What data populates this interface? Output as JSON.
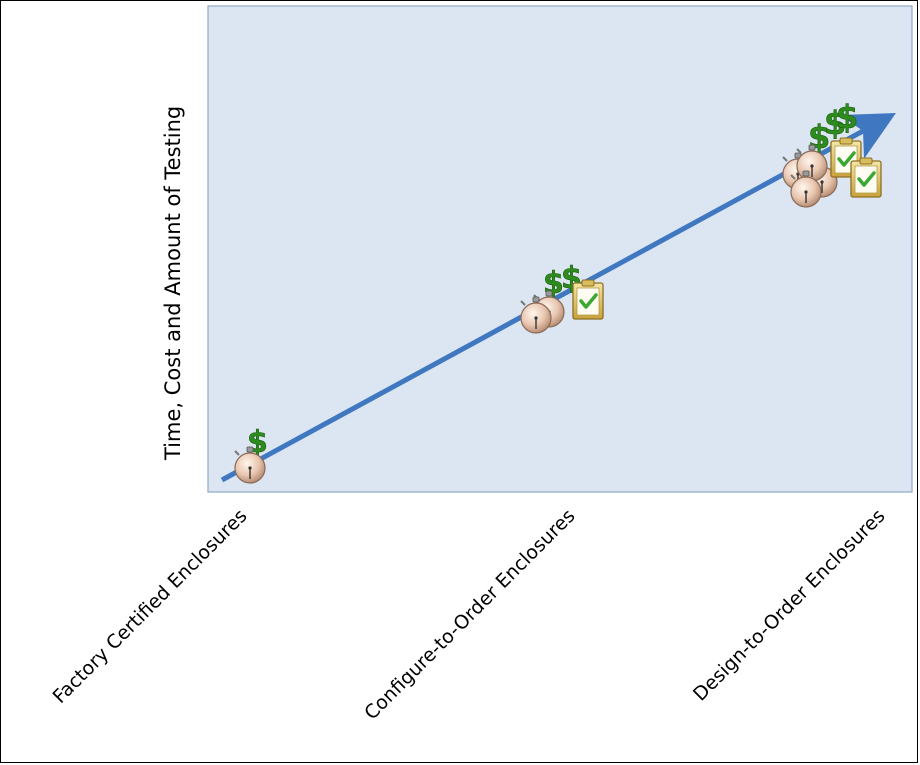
{
  "chart_data": {
    "type": "diagram",
    "ylabel": "Time, Cost and Amount of Testing",
    "categories": [
      "Factory Certified Enclosures",
      "Configure-to-Order Enclosures",
      "Design-to-Order Enclosures"
    ],
    "levels": [
      {
        "category": "Factory Certified Enclosures",
        "stopwatches": 1,
        "dollar_signs": 1,
        "clipboards": 0
      },
      {
        "category": "Configure-to-Order Enclosures",
        "stopwatches": 2,
        "dollar_signs": 2,
        "clipboards": 1
      },
      {
        "category": "Design-to-Order Enclosures",
        "stopwatches": 4,
        "dollar_signs": 3,
        "clipboards": 2
      }
    ],
    "colors": {
      "plot_bg": "#dce6f2",
      "plot_border": "#8ea6c6",
      "arrow": "#3f78c0",
      "dollar": "#2e8b1e",
      "clipboard": "#c9a23a"
    }
  }
}
